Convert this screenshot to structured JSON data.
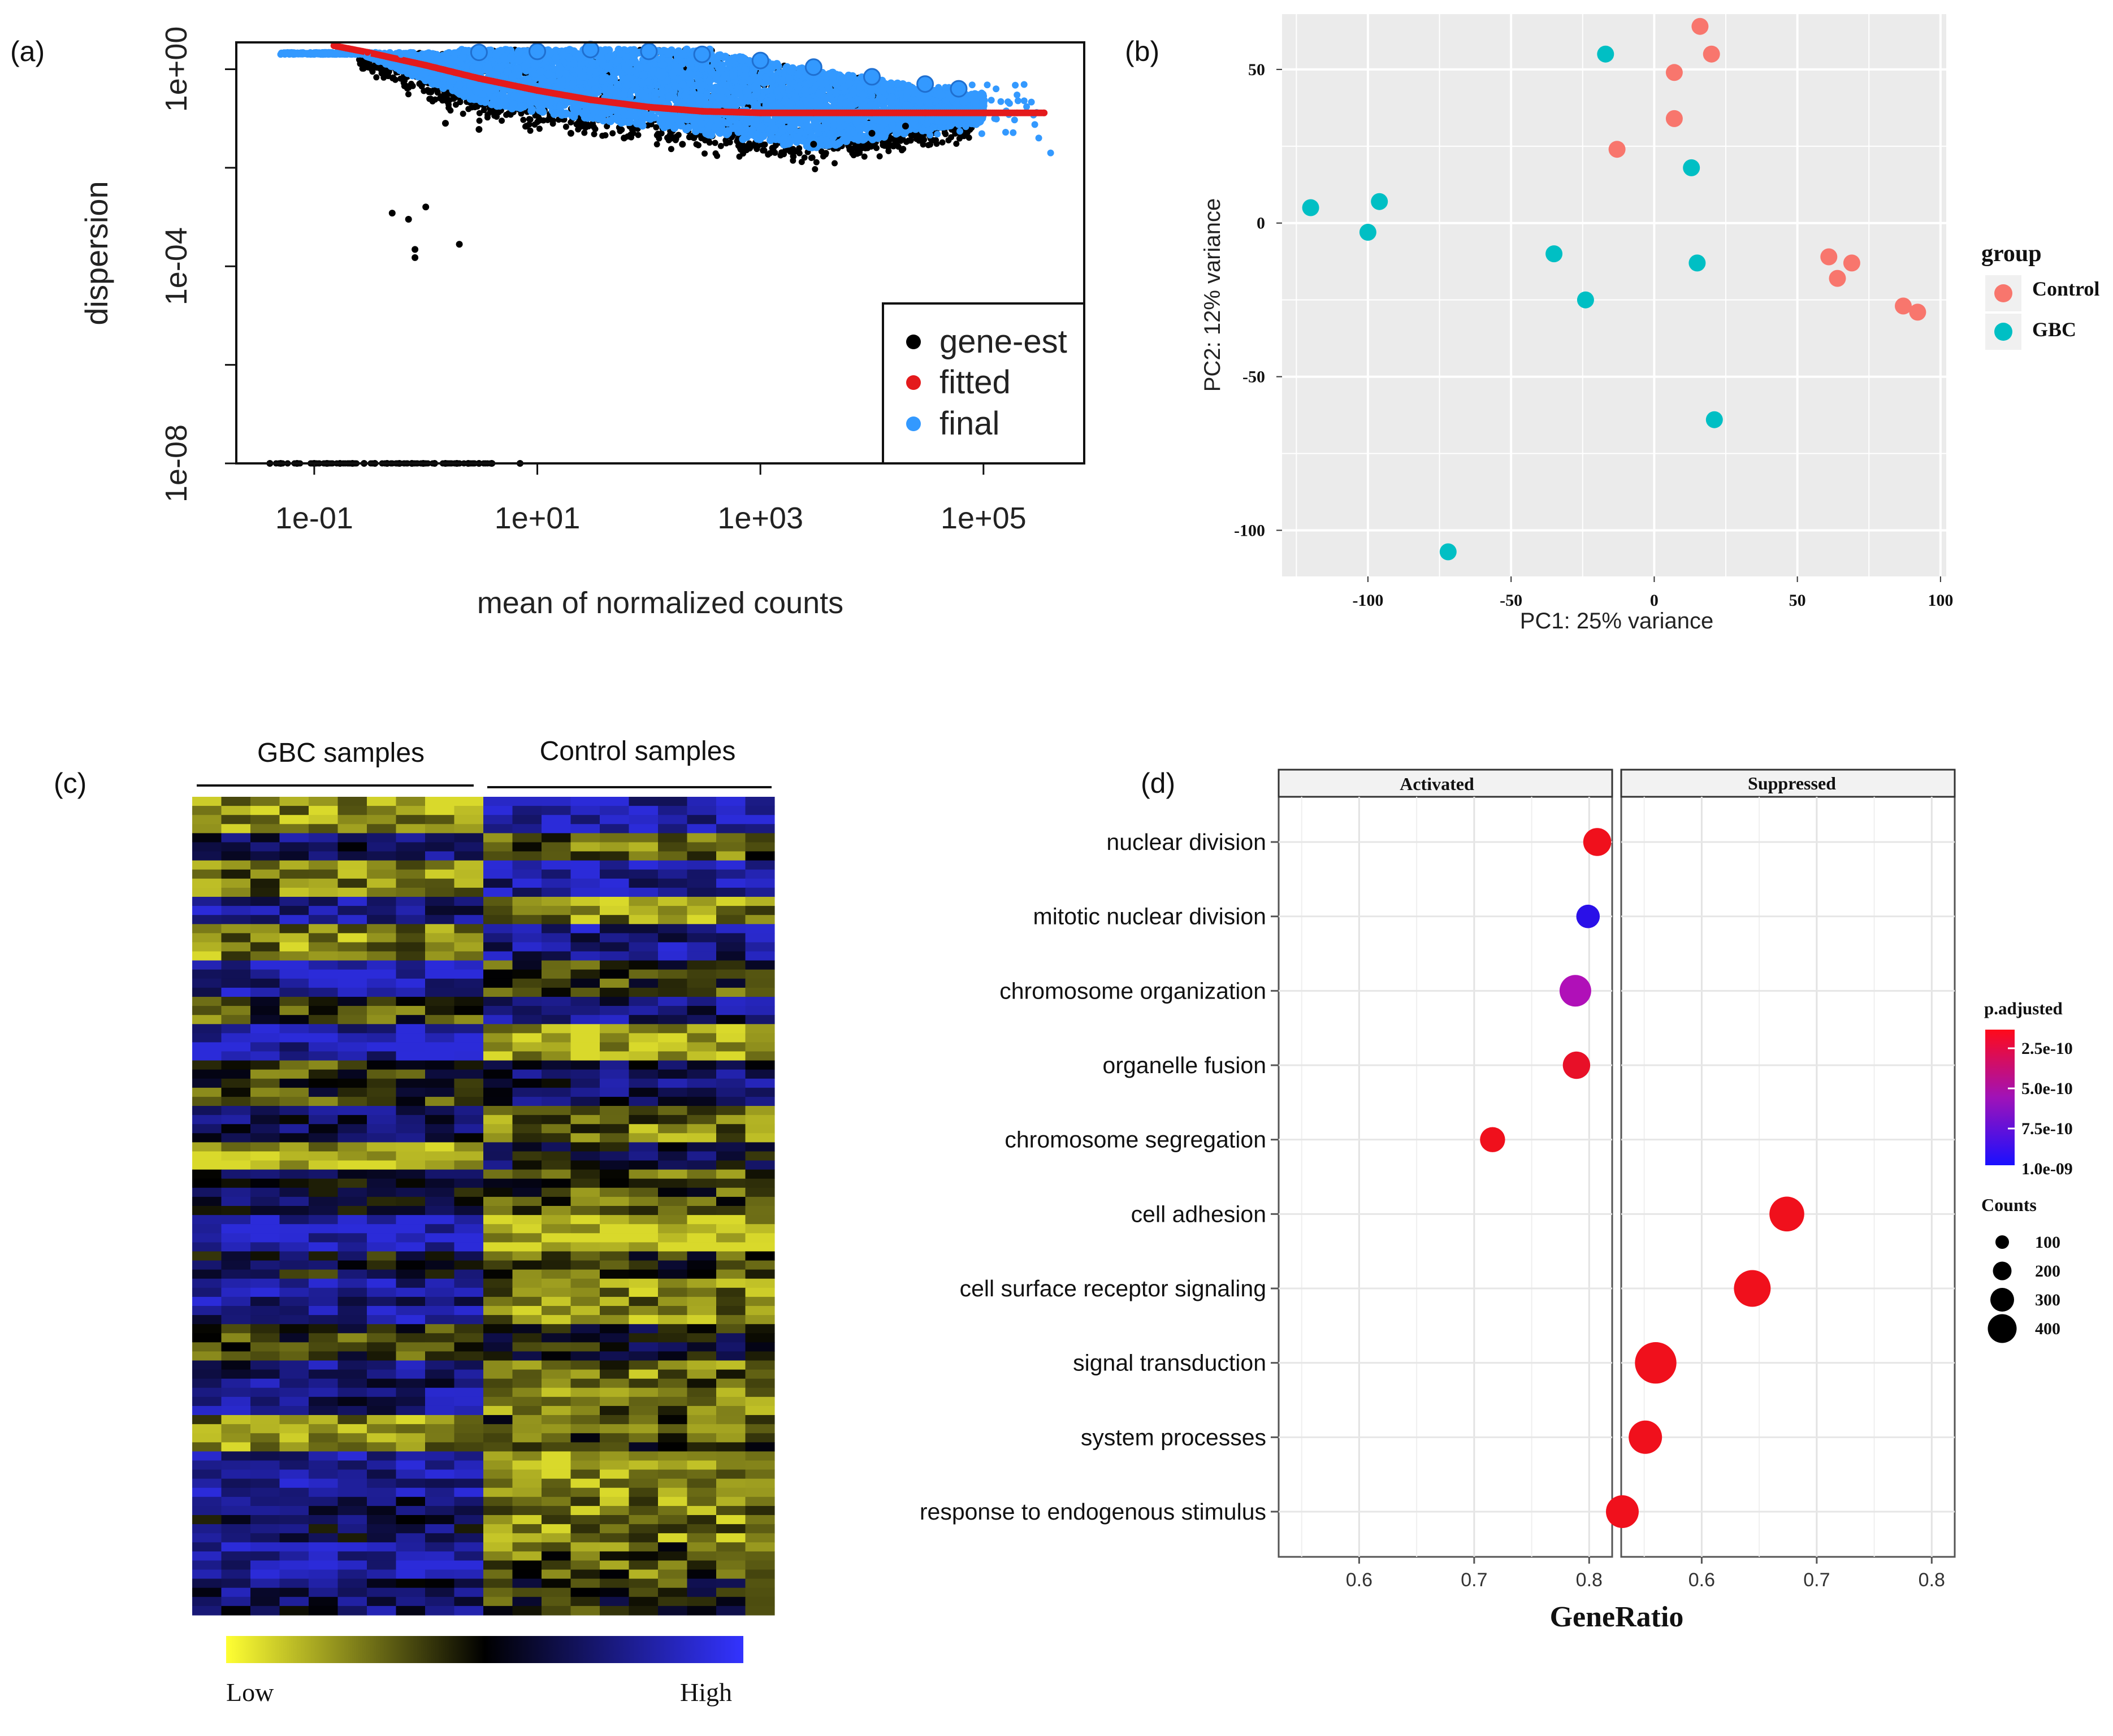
{
  "panels": {
    "a": {
      "label": "(a)",
      "chart_data": {
        "type": "scatter",
        "xscale": "log10",
        "yscale": "log10",
        "xlabel": "mean of normalized counts",
        "ylabel": "dispersion",
        "xlim": [
          0.02,
          800000
        ],
        "ylim": [
          1e-08,
          3.5
        ],
        "x_ticks": [
          0.1,
          10,
          1000,
          100000
        ],
        "x_tick_labels": [
          "1e-01",
          "1e+01",
          "1e+03",
          "1e+05"
        ],
        "y_ticks": [
          1e-08,
          0.0001,
          1
        ],
        "y_tick_labels": [
          "1e-08",
          "1e-04",
          "1e+00"
        ],
        "legend": {
          "placement": "bottom-right",
          "entries": [
            {
              "label": "gene-est",
              "color": "#000000"
            },
            {
              "label": "fitted",
              "color": "#e41a1c"
            },
            {
              "label": "final",
              "color": "#3399ff"
            }
          ]
        },
        "series": [
          {
            "name": "gene-est",
            "color": "#000000",
            "points": [
              [
                0.04,
                1e-08
              ],
              [
                0.05,
                1e-08
              ],
              [
                0.07,
                1e-08
              ],
              [
                0.1,
                1e-08
              ],
              [
                0.13,
                1e-08
              ],
              [
                0.17,
                1e-08
              ],
              [
                0.22,
                1e-08
              ],
              [
                0.28,
                1e-08
              ],
              [
                0.35,
                1e-08
              ],
              [
                0.45,
                1e-08
              ],
              [
                0.58,
                1e-08
              ],
              [
                0.75,
                1e-08
              ],
              [
                0.95,
                1e-08
              ],
              [
                1.2,
                1e-08
              ],
              [
                1.5,
                1e-08
              ],
              [
                1.9,
                1e-08
              ],
              [
                2.4,
                1e-08
              ],
              [
                3.0,
                1e-08
              ],
              [
                3.9,
                1e-08
              ],
              [
                7.0,
                1e-08
              ],
              [
                0.5,
                0.0012
              ],
              [
                0.7,
                0.0009
              ],
              [
                1.0,
                0.0016
              ],
              [
                0.8,
                0.00022
              ],
              [
                0.8,
                0.00015
              ],
              [
                2.0,
                0.00028
              ],
              [
                1.5,
                0.08
              ],
              [
                3,
                0.06
              ],
              [
                8,
                0.07
              ],
              [
                20,
                0.05
              ],
              [
                60,
                0.04
              ],
              [
                200,
                0.03
              ],
              [
                800,
                0.025
              ],
              [
                3000,
                0.03
              ],
              [
                10000,
                0.05
              ],
              [
                20000,
                0.07
              ]
            ]
          },
          {
            "name": "final",
            "color": "#3399ff",
            "points": [
              [
                0.05,
                2
              ],
              [
                0.1,
                2
              ],
              [
                0.3,
                2
              ],
              [
                0.6,
                2
              ],
              [
                1,
                2
              ],
              [
                3,
                2.2
              ],
              [
                10,
                2.3
              ],
              [
                30,
                2.5
              ],
              [
                100,
                2.3
              ],
              [
                300,
                2
              ],
              [
                1000,
                1.5
              ],
              [
                3000,
                1.1
              ],
              [
                10000,
                0.7
              ],
              [
                30000,
                0.5
              ],
              [
                60000,
                0.4
              ],
              [
                200000,
                0.3
              ],
              [
                400000,
                0.02
              ]
            ]
          },
          {
            "name": "fitted",
            "color": "#e41a1c",
            "points": [
              [
                0.15,
                3.0
              ],
              [
                0.3,
                2.2
              ],
              [
                1,
                1.2
              ],
              [
                3,
                0.65
              ],
              [
                10,
                0.37
              ],
              [
                30,
                0.24
              ],
              [
                100,
                0.17
              ],
              [
                300,
                0.14
              ],
              [
                1000,
                0.13
              ],
              [
                3000,
                0.13
              ],
              [
                10000,
                0.13
              ],
              [
                30000,
                0.13
              ],
              [
                100000,
                0.13
              ],
              [
                200000,
                0.13
              ],
              [
                350000,
                0.13
              ]
            ]
          }
        ]
      }
    },
    "b": {
      "label": "(b)",
      "chart_data": {
        "type": "scatter",
        "xlabel": "PC1: 25% variance",
        "ylabel": "PC2: 12% variance",
        "xlim": [
          -130,
          102
        ],
        "ylim": [
          -115,
          68
        ],
        "x_ticks": [
          -100,
          -50,
          0,
          50,
          100
        ],
        "x_tick_labels": [
          "-100",
          "-50",
          "0",
          "50",
          "100"
        ],
        "y_ticks": [
          -100,
          -50,
          0,
          50
        ],
        "y_tick_labels": [
          "-100",
          "-50",
          "0",
          "50"
        ],
        "legend": {
          "title": "group",
          "placement": "right",
          "entries": [
            {
              "label": "Control",
              "color": "#f8766d"
            },
            {
              "label": "GBC",
              "color": "#00bfc4"
            }
          ]
        },
        "series": [
          {
            "name": "Control",
            "color": "#f8766d",
            "points": [
              [
                16,
                64
              ],
              [
                20,
                55
              ],
              [
                7,
                49
              ],
              [
                7,
                34
              ],
              [
                -13,
                24
              ],
              [
                61,
                -11
              ],
              [
                64,
                -18
              ],
              [
                69,
                -13
              ],
              [
                87,
                -27
              ],
              [
                92,
                -29
              ]
            ]
          },
          {
            "name": "GBC",
            "color": "#00bfc4",
            "points": [
              [
                -17,
                55
              ],
              [
                13,
                18
              ],
              [
                -120,
                5
              ],
              [
                -96,
                7
              ],
              [
                -100,
                -3
              ],
              [
                -35,
                -10
              ],
              [
                15,
                -13
              ],
              [
                -24,
                -25
              ],
              [
                21,
                -64
              ],
              [
                -72,
                -107
              ]
            ]
          }
        ]
      }
    },
    "c": {
      "label": "(c)",
      "chart_data": {
        "type": "heatmap",
        "column_groups": [
          {
            "label": "GBC samples",
            "count": 10
          },
          {
            "label": "Control samples",
            "count": 10
          }
        ],
        "colorbar": {
          "low_label": "Low",
          "high_label": "High",
          "low_color": "#ffff33",
          "mid_color": "#000000",
          "high_color": "#3333ff"
        },
        "blocks": [
          {
            "rows": 4,
            "gbc": -0.7,
            "control": 0.8
          },
          {
            "rows": 3,
            "gbc": 0.4,
            "control": -0.4
          },
          {
            "rows": 4,
            "gbc": -0.5,
            "control": 0.7
          },
          {
            "rows": 3,
            "gbc": 0.6,
            "control": -0.6
          },
          {
            "rows": 4,
            "gbc": -0.6,
            "control": 0.6
          },
          {
            "rows": 4,
            "gbc": 0.7,
            "control": -0.2
          },
          {
            "rows": 3,
            "gbc": -0.3,
            "control": 0.5
          },
          {
            "rows": 4,
            "gbc": 0.8,
            "control": -0.8
          },
          {
            "rows": 5,
            "gbc": -0.2,
            "control": 0.4
          },
          {
            "rows": 4,
            "gbc": 0.3,
            "control": -0.5
          },
          {
            "rows": 3,
            "gbc": -0.8,
            "control": 0.2
          },
          {
            "rows": 5,
            "gbc": 0.2,
            "control": -0.3
          },
          {
            "rows": 4,
            "gbc": 0.9,
            "control": -0.9
          },
          {
            "rows": 3,
            "gbc": 0.1,
            "control": -0.2
          },
          {
            "rows": 5,
            "gbc": 0.6,
            "control": -0.6
          },
          {
            "rows": 4,
            "gbc": -0.2,
            "control": 0.1
          },
          {
            "rows": 6,
            "gbc": 0.5,
            "control": -0.5
          },
          {
            "rows": 4,
            "gbc": -0.6,
            "control": -0.3
          },
          {
            "rows": 5,
            "gbc": 0.7,
            "control": -0.7
          },
          {
            "rows": 5,
            "gbc": 0.3,
            "control": -0.6
          },
          {
            "rows": 4,
            "gbc": 0.8,
            "control": -0.4
          },
          {
            "rows": 4,
            "gbc": 0.4,
            "control": -0.1
          }
        ]
      }
    },
    "d": {
      "label": "(d)",
      "chart_data": {
        "type": "scatter",
        "subtype": "dot plot",
        "xlabel": "GeneRatio",
        "facets": [
          "Activated",
          "Suppressed"
        ],
        "xlim": [
          0.53,
          0.82
        ],
        "x_ticks": [
          0.6,
          0.7,
          0.8
        ],
        "x_tick_labels": [
          "0.6",
          "0.7",
          "0.8"
        ],
        "categories": [
          "nuclear division",
          "mitotic nuclear division",
          "chromosome organization",
          "organelle fusion",
          "chromosome segregation",
          "cell adhesion",
          "cell surface receptor signaling",
          "signal transduction",
          "system processes",
          "response to endogenous stimulus"
        ],
        "points": [
          {
            "term": "nuclear division",
            "facet": "Activated",
            "x": 0.807,
            "count": 150,
            "color": "#f0101c"
          },
          {
            "term": "mitotic nuclear division",
            "facet": "Activated",
            "x": 0.799,
            "count": 90,
            "color": "#2a10e8"
          },
          {
            "term": "chromosome organization",
            "facet": "Activated",
            "x": 0.788,
            "count": 210,
            "color": "#b010b8"
          },
          {
            "term": "organelle fusion",
            "facet": "Activated",
            "x": 0.789,
            "count": 140,
            "color": "#e81028"
          },
          {
            "term": "chromosome segregation",
            "facet": "Activated",
            "x": 0.716,
            "count": 110,
            "color": "#f0101c"
          },
          {
            "term": "cell adhesion",
            "facet": "Suppressed",
            "x": 0.674,
            "count": 270,
            "color": "#f0101c"
          },
          {
            "term": "cell surface receptor signaling",
            "facet": "Suppressed",
            "x": 0.644,
            "count": 310,
            "color": "#f0101c"
          },
          {
            "term": "signal transduction",
            "facet": "Suppressed",
            "x": 0.56,
            "count": 420,
            "color": "#f0101c"
          },
          {
            "term": "system processes",
            "facet": "Suppressed",
            "x": 0.551,
            "count": 240,
            "color": "#f0101c"
          },
          {
            "term": "response to endogenous stimulus",
            "facet": "Suppressed",
            "x": 0.531,
            "count": 230,
            "color": "#f0101c"
          }
        ],
        "color_legend": {
          "title": "p.adjusted",
          "labels": [
            "2.5e-10",
            "5.0e-10",
            "7.5e-10",
            "1.0e-09"
          ],
          "low_color": "#ff0a1a",
          "high_color": "#1a10ff"
        },
        "size_legend": {
          "title": "Counts",
          "labels": [
            "100",
            "200",
            "300",
            "400"
          ]
        }
      }
    }
  }
}
